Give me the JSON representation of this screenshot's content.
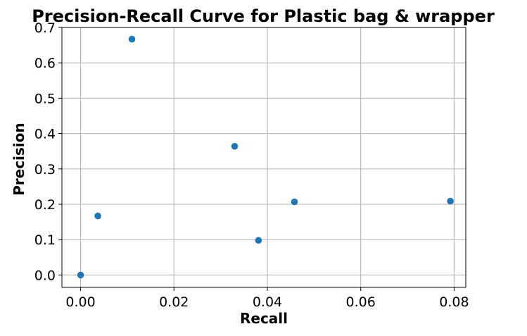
{
  "chart_data": {
    "type": "scatter",
    "title": "Precision-Recall Curve for Plastic bag & wrapper",
    "xlabel": "Recall",
    "ylabel": "Precision",
    "xlim": [
      -0.004,
      0.0825
    ],
    "ylim": [
      -0.035,
      0.7
    ],
    "xticks": [
      0.0,
      0.02,
      0.04,
      0.06,
      0.08
    ],
    "xtick_labels": [
      "0.00",
      "0.02",
      "0.04",
      "0.06",
      "0.08"
    ],
    "yticks": [
      0.0,
      0.1,
      0.2,
      0.3,
      0.4,
      0.5,
      0.6,
      0.7
    ],
    "ytick_labels": [
      "0.0",
      "0.1",
      "0.2",
      "0.3",
      "0.4",
      "0.5",
      "0.6",
      "0.7"
    ],
    "grid": true,
    "marker_color": "#1f77b4",
    "series": [
      {
        "points": [
          {
            "x": 0.0,
            "y": 0.0
          },
          {
            "x": 0.0037,
            "y": 0.167
          },
          {
            "x": 0.011,
            "y": 0.667
          },
          {
            "x": 0.033,
            "y": 0.364
          },
          {
            "x": 0.0381,
            "y": 0.098
          },
          {
            "x": 0.0458,
            "y": 0.207
          },
          {
            "x": 0.0792,
            "y": 0.209
          }
        ]
      }
    ]
  }
}
